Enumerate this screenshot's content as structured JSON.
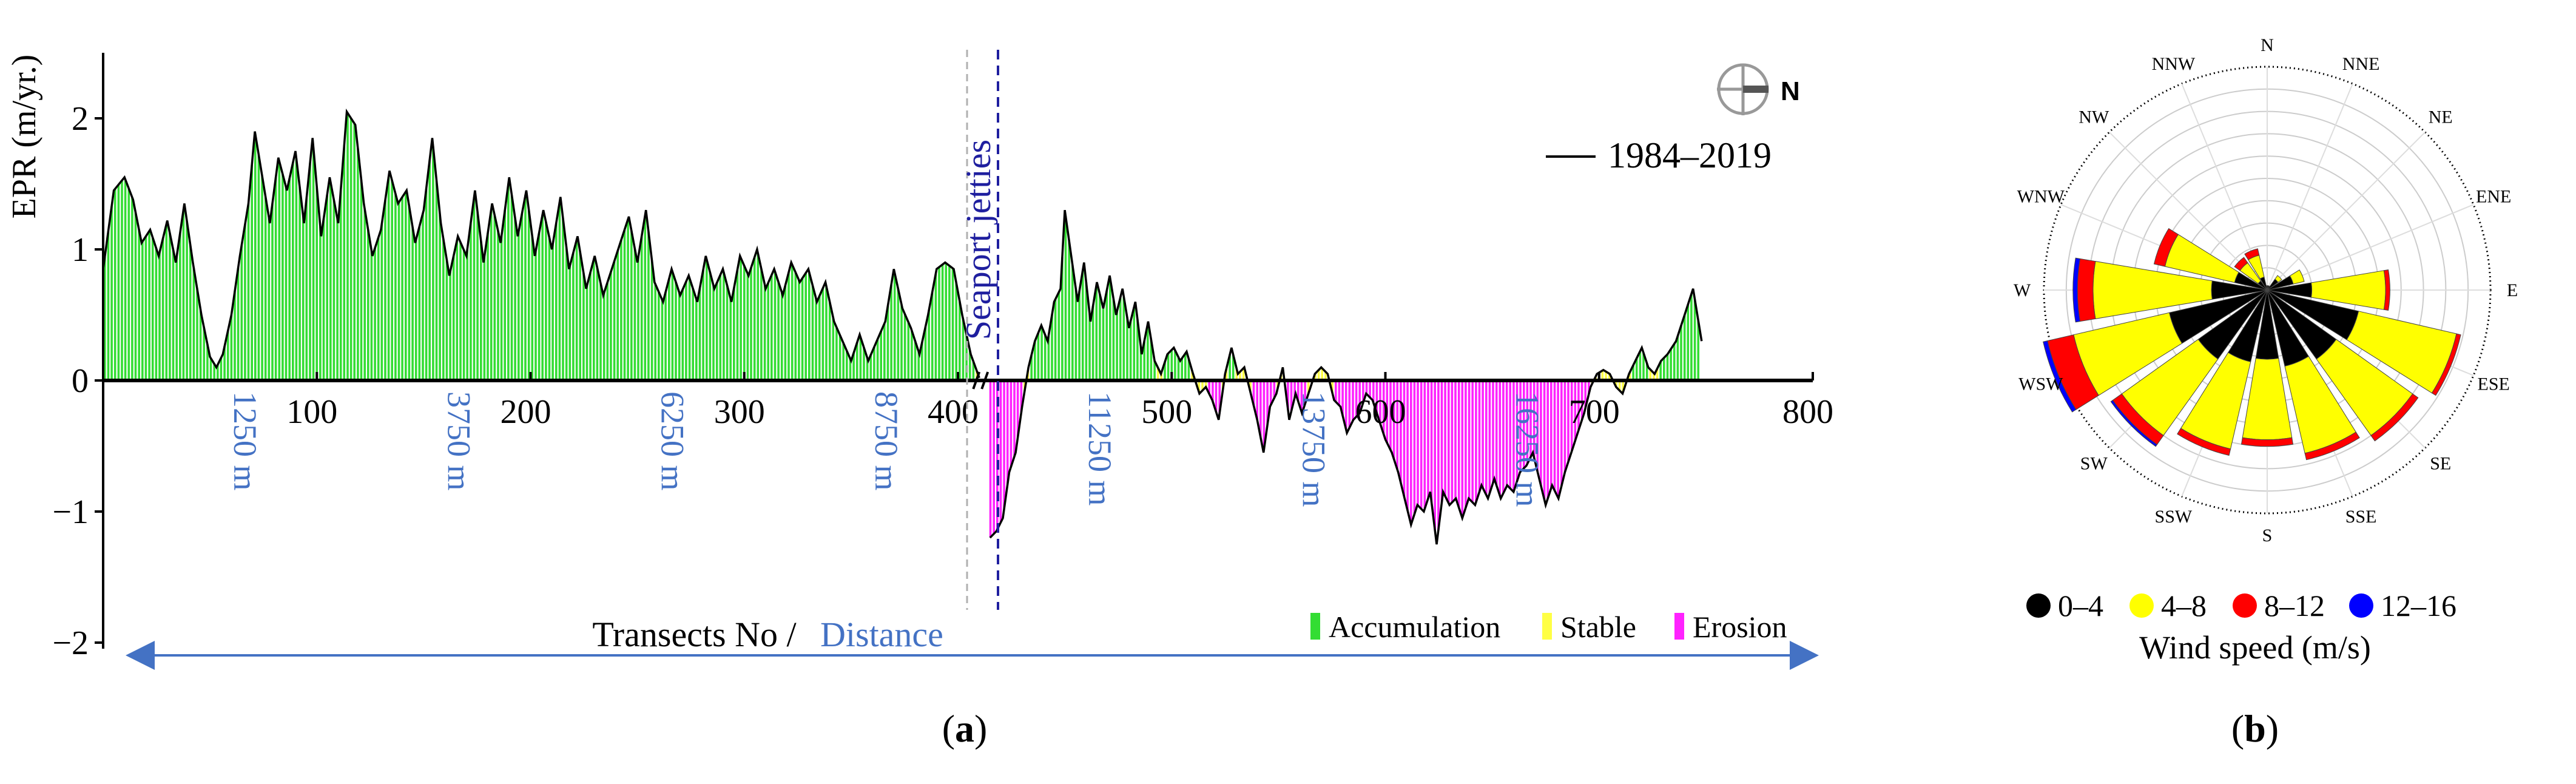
{
  "chart_data": [
    {
      "type": "bar",
      "panel_label": "a",
      "ylabel": "EPR (m/yr.)",
      "xlabel": "Transects No",
      "xlabel_sep": " / ",
      "xlabel_distance": "Distance",
      "y_ticks": [
        "2",
        "1",
        "0",
        "−1",
        "−2"
      ],
      "ylim": [
        -2,
        2.5
      ],
      "xlim": [
        0,
        800
      ],
      "x_ticks": [
        "100",
        "200",
        "300",
        "400",
        "500",
        "600",
        "700",
        "800"
      ],
      "distance_labels": [
        "1250 m",
        "3750 m",
        "6250 m",
        "8750 m",
        "11250 m",
        "13750 m",
        "16250 m"
      ],
      "annotation": "Seaport jetties",
      "series_name": "1984–2019",
      "north_label": "N",
      "legend": [
        {
          "label": "Accumulation",
          "color": "#33dd33"
        },
        {
          "label": "Stable",
          "color": "#ffff44"
        },
        {
          "label": "Erosion",
          "color": "#ff22ff"
        }
      ],
      "stable_threshold": 0.1,
      "profile_points": [
        [
          0,
          0.85
        ],
        [
          5,
          1.45
        ],
        [
          10,
          1.55
        ],
        [
          14,
          1.38
        ],
        [
          18,
          1.05
        ],
        [
          22,
          1.15
        ],
        [
          26,
          0.95
        ],
        [
          30,
          1.22
        ],
        [
          34,
          0.9
        ],
        [
          38,
          1.35
        ],
        [
          42,
          0.9
        ],
        [
          46,
          0.5
        ],
        [
          50,
          0.18
        ],
        [
          53,
          0.1
        ],
        [
          56,
          0.2
        ],
        [
          60,
          0.5
        ],
        [
          64,
          0.95
        ],
        [
          68,
          1.35
        ],
        [
          71,
          1.9
        ],
        [
          74,
          1.6
        ],
        [
          78,
          1.2
        ],
        [
          82,
          1.7
        ],
        [
          86,
          1.45
        ],
        [
          90,
          1.75
        ],
        [
          94,
          1.2
        ],
        [
          98,
          1.85
        ],
        [
          102,
          1.1
        ],
        [
          106,
          1.55
        ],
        [
          110,
          1.2
        ],
        [
          114,
          2.05
        ],
        [
          118,
          1.95
        ],
        [
          122,
          1.35
        ],
        [
          126,
          0.95
        ],
        [
          130,
          1.15
        ],
        [
          134,
          1.6
        ],
        [
          138,
          1.35
        ],
        [
          142,
          1.45
        ],
        [
          146,
          1.05
        ],
        [
          150,
          1.3
        ],
        [
          154,
          1.85
        ],
        [
          158,
          1.2
        ],
        [
          162,
          0.8
        ],
        [
          166,
          1.1
        ],
        [
          170,
          0.95
        ],
        [
          174,
          1.45
        ],
        [
          178,
          0.9
        ],
        [
          182,
          1.35
        ],
        [
          186,
          1.05
        ],
        [
          190,
          1.55
        ],
        [
          194,
          1.1
        ],
        [
          198,
          1.45
        ],
        [
          202,
          0.95
        ],
        [
          206,
          1.3
        ],
        [
          210,
          1.0
        ],
        [
          214,
          1.4
        ],
        [
          218,
          0.85
        ],
        [
          222,
          1.1
        ],
        [
          226,
          0.7
        ],
        [
          230,
          0.95
        ],
        [
          234,
          0.65
        ],
        [
          238,
          0.85
        ],
        [
          242,
          1.05
        ],
        [
          246,
          1.25
        ],
        [
          250,
          0.9
        ],
        [
          254,
          1.3
        ],
        [
          258,
          0.75
        ],
        [
          262,
          0.6
        ],
        [
          266,
          0.85
        ],
        [
          270,
          0.65
        ],
        [
          274,
          0.8
        ],
        [
          278,
          0.6
        ],
        [
          282,
          0.95
        ],
        [
          286,
          0.7
        ],
        [
          290,
          0.85
        ],
        [
          294,
          0.6
        ],
        [
          298,
          0.95
        ],
        [
          302,
          0.8
        ],
        [
          306,
          1.0
        ],
        [
          310,
          0.7
        ],
        [
          314,
          0.85
        ],
        [
          318,
          0.65
        ],
        [
          322,
          0.9
        ],
        [
          326,
          0.75
        ],
        [
          330,
          0.85
        ],
        [
          334,
          0.6
        ],
        [
          338,
          0.75
        ],
        [
          342,
          0.45
        ],
        [
          346,
          0.3
        ],
        [
          350,
          0.15
        ],
        [
          354,
          0.35
        ],
        [
          358,
          0.15
        ],
        [
          362,
          0.3
        ],
        [
          366,
          0.45
        ],
        [
          370,
          0.85
        ],
        [
          374,
          0.55
        ],
        [
          378,
          0.4
        ],
        [
          382,
          0.2
        ],
        [
          386,
          0.5
        ],
        [
          390,
          0.85
        ],
        [
          394,
          0.9
        ],
        [
          398,
          0.85
        ],
        [
          402,
          0.5
        ],
        [
          406,
          0.2
        ],
        [
          410,
          0.02
        ],
        [
          415,
          -1.2
        ],
        [
          418,
          -1.15
        ],
        [
          421,
          -1.05
        ],
        [
          424,
          -0.7
        ],
        [
          427,
          -0.55
        ],
        [
          430,
          -0.2
        ],
        [
          433,
          0.1
        ],
        [
          436,
          0.3
        ],
        [
          439,
          0.42
        ],
        [
          442,
          0.3
        ],
        [
          445,
          0.6
        ],
        [
          448,
          0.7
        ],
        [
          450,
          1.3
        ],
        [
          453,
          0.95
        ],
        [
          456,
          0.6
        ],
        [
          459,
          0.9
        ],
        [
          462,
          0.45
        ],
        [
          465,
          0.75
        ],
        [
          468,
          0.55
        ],
        [
          471,
          0.8
        ],
        [
          474,
          0.5
        ],
        [
          477,
          0.7
        ],
        [
          480,
          0.4
        ],
        [
          483,
          0.6
        ],
        [
          486,
          0.2
        ],
        [
          489,
          0.45
        ],
        [
          492,
          0.15
        ],
        [
          495,
          0.05
        ],
        [
          498,
          0.2
        ],
        [
          501,
          0.25
        ],
        [
          504,
          0.15
        ],
        [
          507,
          0.22
        ],
        [
          510,
          0.05
        ],
        [
          513,
          -0.1
        ],
        [
          516,
          -0.05
        ],
        [
          519,
          -0.15
        ],
        [
          522,
          -0.3
        ],
        [
          525,
          0.05
        ],
        [
          528,
          0.25
        ],
        [
          531,
          0.05
        ],
        [
          534,
          0.1
        ],
        [
          537,
          -0.1
        ],
        [
          540,
          -0.3
        ],
        [
          543,
          -0.55
        ],
        [
          546,
          -0.2
        ],
        [
          549,
          -0.1
        ],
        [
          552,
          0.1
        ],
        [
          555,
          -0.3
        ],
        [
          558,
          -0.1
        ],
        [
          561,
          -0.25
        ],
        [
          564,
          -0.1
        ],
        [
          567,
          0.05
        ],
        [
          570,
          0.1
        ],
        [
          573,
          0.05
        ],
        [
          576,
          -0.15
        ],
        [
          579,
          -0.2
        ],
        [
          582,
          -0.4
        ],
        [
          585,
          -0.3
        ],
        [
          588,
          -0.25
        ],
        [
          591,
          -0.1
        ],
        [
          594,
          -0.15
        ],
        [
          597,
          -0.3
        ],
        [
          600,
          -0.45
        ],
        [
          603,
          -0.55
        ],
        [
          606,
          -0.7
        ],
        [
          609,
          -0.9
        ],
        [
          612,
          -1.1
        ],
        [
          615,
          -0.95
        ],
        [
          618,
          -1.0
        ],
        [
          621,
          -0.85
        ],
        [
          624,
          -1.25
        ],
        [
          627,
          -0.85
        ],
        [
          630,
          -0.95
        ],
        [
          633,
          -0.9
        ],
        [
          636,
          -1.05
        ],
        [
          639,
          -0.9
        ],
        [
          642,
          -0.95
        ],
        [
          645,
          -0.8
        ],
        [
          648,
          -0.9
        ],
        [
          651,
          -0.75
        ],
        [
          654,
          -0.9
        ],
        [
          657,
          -0.8
        ],
        [
          660,
          -0.85
        ],
        [
          663,
          -0.7
        ],
        [
          666,
          -0.65
        ],
        [
          669,
          -0.55
        ],
        [
          672,
          -0.75
        ],
        [
          675,
          -0.95
        ],
        [
          678,
          -0.8
        ],
        [
          681,
          -0.9
        ],
        [
          684,
          -0.7
        ],
        [
          687,
          -0.55
        ],
        [
          690,
          -0.4
        ],
        [
          693,
          -0.25
        ],
        [
          696,
          -0.05
        ],
        [
          699,
          0.05
        ],
        [
          702,
          0.08
        ],
        [
          705,
          0.05
        ],
        [
          708,
          -0.05
        ],
        [
          711,
          -0.1
        ],
        [
          714,
          0.05
        ],
        [
          717,
          0.15
        ],
        [
          720,
          0.25
        ],
        [
          723,
          0.1
        ],
        [
          726,
          0.05
        ],
        [
          729,
          0.15
        ],
        [
          732,
          0.2
        ],
        [
          736,
          0.3
        ],
        [
          740,
          0.5
        ],
        [
          744,
          0.7
        ],
        [
          748,
          0.3
        ]
      ]
    },
    {
      "type": "wind_rose",
      "panel_label": "b",
      "directions": [
        "N",
        "NNE",
        "NE",
        "ENE",
        "E",
        "ESE",
        "SE",
        "SSE",
        "S",
        "SSW",
        "SW",
        "WSW",
        "W",
        "WNW",
        "NW",
        "NNW"
      ],
      "speed_bins": [
        {
          "label": "0–4",
          "color": "#000000"
        },
        {
          "label": "4–8",
          "color": "#ffff00"
        },
        {
          "label": "8–12",
          "color": "#ff0000"
        },
        {
          "label": "12–16",
          "color": "#0000ff"
        }
      ],
      "values": [
        [
          0.02,
          0.0,
          0.0,
          0.0
        ],
        [
          0.02,
          0.0,
          0.0,
          0.0
        ],
        [
          0.06,
          0.02,
          0.0,
          0.0
        ],
        [
          0.12,
          0.05,
          0.0,
          0.0
        ],
        [
          0.2,
          0.33,
          0.02,
          0.0
        ],
        [
          0.42,
          0.45,
          0.02,
          0.0
        ],
        [
          0.38,
          0.42,
          0.03,
          0.0
        ],
        [
          0.35,
          0.4,
          0.03,
          0.0
        ],
        [
          0.31,
          0.36,
          0.03,
          0.0
        ],
        [
          0.33,
          0.4,
          0.03,
          0.0
        ],
        [
          0.38,
          0.42,
          0.05,
          0.01
        ],
        [
          0.45,
          0.44,
          0.12,
          0.02
        ],
        [
          0.25,
          0.53,
          0.07,
          0.02
        ],
        [
          0.15,
          0.32,
          0.05,
          0.0
        ],
        [
          0.05,
          0.1,
          0.03,
          0.0
        ],
        [
          0.06,
          0.1,
          0.03,
          0.0
        ]
      ],
      "legend_title": "Wind speed (m/s)"
    }
  ]
}
